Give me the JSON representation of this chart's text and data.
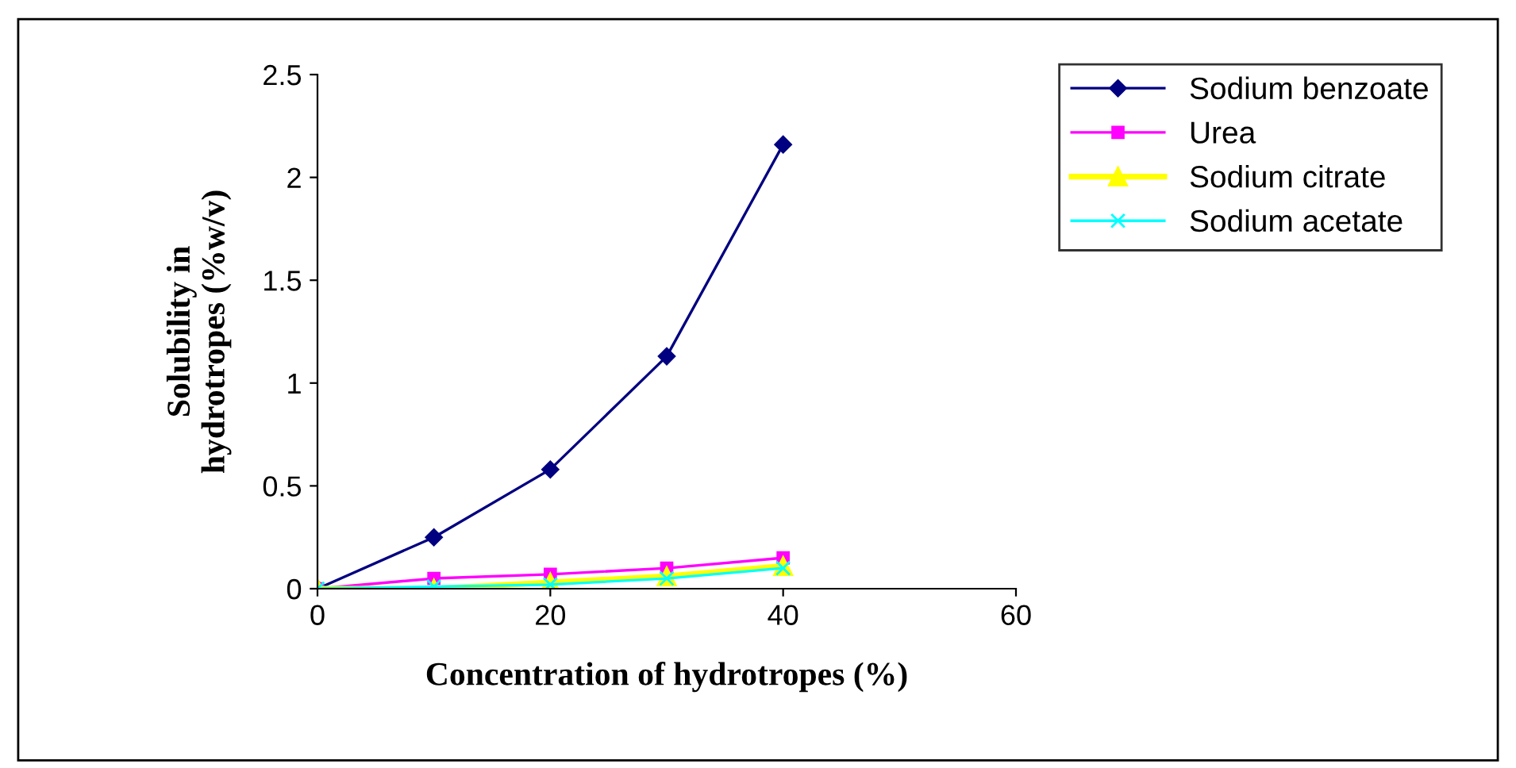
{
  "chart_data": {
    "type": "line",
    "xlabel": "Concentration of hydrotropes (%)",
    "ylabel": "Solubility in\nhydrotropes (%w/v)",
    "x": [
      0,
      10,
      20,
      30,
      40
    ],
    "series": [
      {
        "name": "Sodium benzoate",
        "color": "#000080",
        "marker": "diamond",
        "values": [
          0,
          0.25,
          0.58,
          1.13,
          2.16
        ]
      },
      {
        "name": "Urea",
        "color": "#ff00ff",
        "marker": "square",
        "values": [
          0,
          0.05,
          0.07,
          0.1,
          0.15
        ]
      },
      {
        "name": "Sodium citrate",
        "color": "#ffff00",
        "marker": "triangle",
        "values": [
          0,
          0.0,
          0.03,
          0.06,
          0.11
        ]
      },
      {
        "name": "Sodium acetate",
        "color": "#00ffff",
        "marker": "cross",
        "values": [
          0,
          0.01,
          0.02,
          0.05,
          0.1
        ]
      }
    ],
    "xlim": [
      0,
      60
    ],
    "xticks": [
      0,
      20,
      40,
      60
    ],
    "ylim": [
      0,
      2.5
    ],
    "yticks": [
      0,
      0.5,
      1,
      1.5,
      2,
      2.5
    ],
    "grid": false,
    "legend": "top right"
  }
}
